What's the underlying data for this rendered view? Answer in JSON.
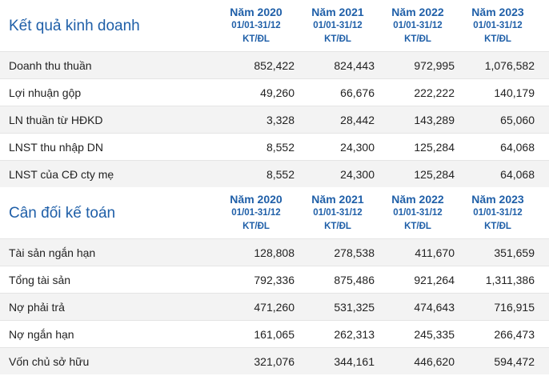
{
  "colors": {
    "title": "#1f5fa8",
    "row_alt_bg": "#f3f3f3",
    "divider": "#e4e4e4"
  },
  "business_results": {
    "title": "Kết quả kinh doanh",
    "columns": [
      {
        "year": "Năm 2020",
        "period": "01/01-31/12",
        "unit": "KT/ĐL"
      },
      {
        "year": "Năm 2021",
        "period": "01/01-31/12",
        "unit": "KT/ĐL"
      },
      {
        "year": "Năm 2022",
        "period": "01/01-31/12",
        "unit": "KT/ĐL"
      },
      {
        "year": "Năm 2023",
        "period": "01/01-31/12",
        "unit": "KT/ĐL"
      }
    ],
    "rows": [
      {
        "label": "Doanh thu thuần",
        "values": [
          "852,422",
          "824,443",
          "972,995",
          "1,076,582"
        ]
      },
      {
        "label": "Lợi nhuận gộp",
        "values": [
          "49,260",
          "66,676",
          "222,222",
          "140,179"
        ]
      },
      {
        "label": "LN thuần từ HĐKD",
        "values": [
          "3,328",
          "28,442",
          "143,289",
          "65,060"
        ]
      },
      {
        "label": "LNST thu nhập DN",
        "values": [
          "8,552",
          "24,300",
          "125,284",
          "64,068"
        ]
      },
      {
        "label": "LNST của CĐ cty mẹ",
        "values": [
          "8,552",
          "24,300",
          "125,284",
          "64,068"
        ]
      }
    ]
  },
  "balance_sheet": {
    "title": "Cân đối kế toán",
    "columns": [
      {
        "year": "Năm 2020",
        "period": "01/01-31/12",
        "unit": "KT/ĐL"
      },
      {
        "year": "Năm 2021",
        "period": "01/01-31/12",
        "unit": "KT/ĐL"
      },
      {
        "year": "Năm 2022",
        "period": "01/01-31/12",
        "unit": "KT/ĐL"
      },
      {
        "year": "Năm 2023",
        "period": "01/01-31/12",
        "unit": "KT/ĐL"
      }
    ],
    "rows": [
      {
        "label": "Tài sản ngắn hạn",
        "values": [
          "128,808",
          "278,538",
          "411,670",
          "351,659"
        ]
      },
      {
        "label": "Tổng tài sản",
        "values": [
          "792,336",
          "875,486",
          "921,264",
          "1,311,386"
        ]
      },
      {
        "label": "Nợ phải trả",
        "values": [
          "471,260",
          "531,325",
          "474,643",
          "716,915"
        ]
      },
      {
        "label": "Nợ ngắn hạn",
        "values": [
          "161,065",
          "262,313",
          "245,335",
          "266,473"
        ]
      },
      {
        "label": "Vốn chủ sở hữu",
        "values": [
          "321,076",
          "344,161",
          "446,620",
          "594,472"
        ]
      }
    ]
  }
}
